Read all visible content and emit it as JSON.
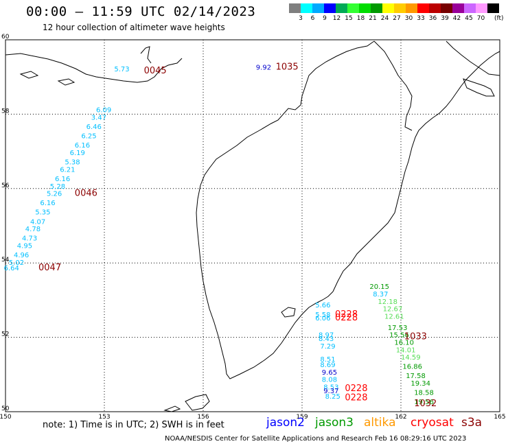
{
  "title": "00:00 – 11:59 UTC 02/14/2023",
  "subtitle": "12 hour collection of altimeter wave heights",
  "scale": {
    "colors": [
      "#7f7f7f",
      "#00ffff",
      "#00aaff",
      "#0000ff",
      "#00aa55",
      "#33ff33",
      "#00dd00",
      "#009900",
      "#ffff00",
      "#ffcc00",
      "#ff9900",
      "#ff0000",
      "#bb0000",
      "#770000",
      "#990099",
      "#cc66ff",
      "#ff99ff",
      "#000000"
    ],
    "labels": [
      "3",
      "6",
      "9",
      "12",
      "15",
      "18",
      "21",
      "24",
      "27",
      "30",
      "33",
      "36",
      "39",
      "42",
      "45",
      "70"
    ],
    "unit": "(ft)"
  },
  "axes": {
    "lon_ticks": [
      "150",
      "153",
      "156",
      "159",
      "162",
      "165"
    ],
    "lat_ticks": [
      "60",
      "58",
      "56",
      "54",
      "52",
      "50"
    ],
    "lon_range": [
      150,
      165
    ],
    "lat_range": [
      50,
      60
    ]
  },
  "map_data": {
    "times": [
      {
        "text": "0045",
        "lon": 154.2,
        "lat": 59.1,
        "color": "#8b0000"
      },
      {
        "text": "1035",
        "lon": 158.2,
        "lat": 59.2,
        "color": "#8b0000"
      },
      {
        "text": "0046",
        "lon": 152.1,
        "lat": 55.8,
        "color": "#8b0000"
      },
      {
        "text": "0047",
        "lon": 151.0,
        "lat": 53.8,
        "color": "#8b0000"
      },
      {
        "text": "0228",
        "lon": 160.0,
        "lat": 52.55,
        "color": "#ff0000"
      },
      {
        "text": "0228",
        "lon": 160.0,
        "lat": 52.45,
        "color": "#ff0000"
      },
      {
        "text": "1033",
        "lon": 162.1,
        "lat": 51.95,
        "color": "#8b0000"
      },
      {
        "text": "0228",
        "lon": 160.3,
        "lat": 50.55,
        "color": "#ff0000"
      },
      {
        "text": "0228",
        "lon": 160.3,
        "lat": 50.3,
        "color": "#ff0000"
      },
      {
        "text": "1032",
        "lon": 162.4,
        "lat": 50.15,
        "color": "#8b0000"
      }
    ],
    "points": [
      {
        "text": "5.73",
        "lon": 153.3,
        "lat": 59.15,
        "color": "#00bfff"
      },
      {
        "text": "9.92",
        "lon": 157.6,
        "lat": 59.2,
        "color": "#0000cc"
      },
      {
        "text": "6.09",
        "lon": 152.75,
        "lat": 58.05,
        "color": "#00bfff"
      },
      {
        "text": "3.47",
        "lon": 152.6,
        "lat": 57.85,
        "color": "#00bfff"
      },
      {
        "text": "6.46",
        "lon": 152.45,
        "lat": 57.6,
        "color": "#00bfff"
      },
      {
        "text": "6.25",
        "lon": 152.3,
        "lat": 57.35,
        "color": "#00bfff"
      },
      {
        "text": "6.16",
        "lon": 152.1,
        "lat": 57.1,
        "color": "#00bfff"
      },
      {
        "text": "6.19",
        "lon": 151.95,
        "lat": 56.9,
        "color": "#00bfff"
      },
      {
        "text": "5.38",
        "lon": 151.8,
        "lat": 56.65,
        "color": "#00bfff"
      },
      {
        "text": "6.21",
        "lon": 151.65,
        "lat": 56.45,
        "color": "#00bfff"
      },
      {
        "text": "6.16",
        "lon": 151.5,
        "lat": 56.2,
        "color": "#00bfff"
      },
      {
        "text": "5.28",
        "lon": 151.35,
        "lat": 56.0,
        "color": "#00bfff"
      },
      {
        "text": "5.26",
        "lon": 151.25,
        "lat": 55.8,
        "color": "#00bfff"
      },
      {
        "text": "6.16",
        "lon": 151.05,
        "lat": 55.55,
        "color": "#00bfff"
      },
      {
        "text": "5.35",
        "lon": 150.9,
        "lat": 55.3,
        "color": "#00bfff"
      },
      {
        "text": "4.07",
        "lon": 150.75,
        "lat": 55.05,
        "color": "#00bfff"
      },
      {
        "text": "4.78",
        "lon": 150.6,
        "lat": 54.85,
        "color": "#00bfff"
      },
      {
        "text": "4.73",
        "lon": 150.5,
        "lat": 54.6,
        "color": "#00bfff"
      },
      {
        "text": "4.95",
        "lon": 150.35,
        "lat": 54.4,
        "color": "#00bfff"
      },
      {
        "text": "4.96",
        "lon": 150.25,
        "lat": 54.15,
        "color": "#00bfff"
      },
      {
        "text": "5.02",
        "lon": 150.1,
        "lat": 53.95,
        "color": "#00bfff"
      },
      {
        "text": "6.64",
        "lon": 149.95,
        "lat": 53.8,
        "color": "#00bfff"
      },
      {
        "text": "20.15",
        "lon": 161.05,
        "lat": 53.3,
        "color": "#009900"
      },
      {
        "text": "8.37",
        "lon": 161.15,
        "lat": 53.1,
        "color": "#00bfff"
      },
      {
        "text": "12.18",
        "lon": 161.3,
        "lat": 52.9,
        "color": "#55dd55"
      },
      {
        "text": "12.67",
        "lon": 161.45,
        "lat": 52.7,
        "color": "#55dd55"
      },
      {
        "text": "12.61",
        "lon": 161.5,
        "lat": 52.5,
        "color": "#55dd55"
      },
      {
        "text": "17.53",
        "lon": 161.6,
        "lat": 52.2,
        "color": "#009900"
      },
      {
        "text": "15.56",
        "lon": 161.65,
        "lat": 52.0,
        "color": "#009900"
      },
      {
        "text": "16.10",
        "lon": 161.8,
        "lat": 51.8,
        "color": "#009900"
      },
      {
        "text": "14.01",
        "lon": 161.85,
        "lat": 51.6,
        "color": "#55dd55"
      },
      {
        "text": "14.59",
        "lon": 162.0,
        "lat": 51.4,
        "color": "#55dd55"
      },
      {
        "text": "16.86",
        "lon": 162.05,
        "lat": 51.15,
        "color": "#009900"
      },
      {
        "text": "17.58",
        "lon": 162.15,
        "lat": 50.9,
        "color": "#009900"
      },
      {
        "text": "19.34",
        "lon": 162.3,
        "lat": 50.7,
        "color": "#009900"
      },
      {
        "text": "18.58",
        "lon": 162.4,
        "lat": 50.45,
        "color": "#009900"
      },
      {
        "text": "19.56",
        "lon": 162.4,
        "lat": 50.2,
        "color": "#009900"
      },
      {
        "text": "5.66",
        "lon": 159.4,
        "lat": 52.8,
        "color": "#00bfff"
      },
      {
        "text": "5.58",
        "lon": 159.4,
        "lat": 52.55,
        "color": "#00bfff"
      },
      {
        "text": "6.06",
        "lon": 159.4,
        "lat": 52.45,
        "color": "#00bfff"
      },
      {
        "text": "8.97",
        "lon": 159.5,
        "lat": 52.0,
        "color": "#00bfff"
      },
      {
        "text": "8.43",
        "lon": 159.5,
        "lat": 51.9,
        "color": "#00bfff"
      },
      {
        "text": "7.29",
        "lon": 159.55,
        "lat": 51.7,
        "color": "#00bfff"
      },
      {
        "text": "8.51",
        "lon": 159.55,
        "lat": 51.35,
        "color": "#00bfff"
      },
      {
        "text": "8.69",
        "lon": 159.55,
        "lat": 51.2,
        "color": "#00bfff"
      },
      {
        "text": "9.65",
        "lon": 159.6,
        "lat": 51.0,
        "color": "#0000cc"
      },
      {
        "text": "8.08",
        "lon": 159.6,
        "lat": 50.8,
        "color": "#00bfff"
      },
      {
        "text": "8.53",
        "lon": 159.65,
        "lat": 50.6,
        "color": "#00bfff"
      },
      {
        "text": "9.37",
        "lon": 159.65,
        "lat": 50.5,
        "color": "#0000cc"
      },
      {
        "text": "8.25",
        "lon": 159.7,
        "lat": 50.35,
        "color": "#00bfff"
      }
    ]
  },
  "note": "note:  1) Time is in UTC;  2) SWH is in feet",
  "satellites": [
    {
      "name": "jason2",
      "color": "#0000ff"
    },
    {
      "name": "jason3",
      "color": "#009900"
    },
    {
      "name": "altika",
      "color": "#ff9900"
    },
    {
      "name": "cryosat",
      "color": "#ff0000"
    },
    {
      "name": "s3a",
      "color": "#8b0000"
    }
  ],
  "credit": "NOAA/NESDIS Center for Satellite Applications and Research     Feb 16 08:29:16 UTC 2023"
}
